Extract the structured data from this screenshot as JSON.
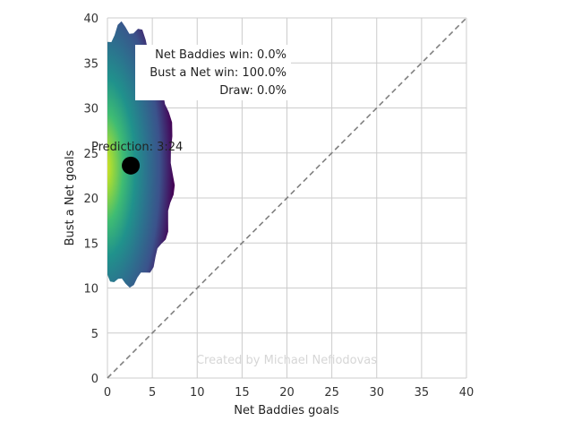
{
  "chart_data": {
    "type": "heatmap",
    "xlabel": "Net Baddies goals",
    "ylabel": "Bust a Net goals",
    "xlim": [
      0,
      40
    ],
    "ylim": [
      0,
      40
    ],
    "xticks": [
      0,
      5,
      10,
      15,
      20,
      25,
      30,
      35,
      40
    ],
    "yticks": [
      0,
      5,
      10,
      15,
      20,
      25,
      30,
      35,
      40
    ],
    "grid": true,
    "colormap": "viridis",
    "distribution": {
      "x_range": [
        0,
        7.3
      ],
      "y_range": [
        10.5,
        39
      ],
      "peak": [
        2,
        22.5
      ]
    },
    "prediction_point": {
      "x": 2.6,
      "y": 23.6,
      "color": "#000000"
    },
    "prediction_label": "Prediction: 3:24",
    "reference_line": {
      "from": [
        0,
        0
      ],
      "to": [
        40,
        40
      ],
      "style": "dashed",
      "color": "#808080"
    },
    "annotations": {
      "lines": [
        "Net Baddies win: 0.0%",
        "Bust a Net win: 100.0%",
        "Draw: 0.0%"
      ],
      "location": "upper-left"
    },
    "watermark": "Created by Michael Nefiodovas"
  }
}
